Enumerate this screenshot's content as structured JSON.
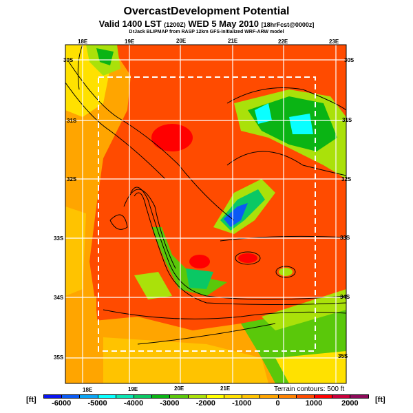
{
  "title": "OvercastDevelopment Potential",
  "subtitle_main": "Valid 1400 LST ",
  "subtitle_small1": "(1200Z)",
  "subtitle_mid": " WED 5 May 2010 ",
  "subtitle_small2": "[18hrFcst@0000z]",
  "credit": "DrJack BLIPMAP from RASP 12km GFS-initialized WRF-ARW model",
  "top_lon_labels": [
    "18E",
    "19E",
    "20E",
    "21E",
    "22E",
    "23E"
  ],
  "bottom_lon_labels": [
    "18E",
    "19E",
    "20E",
    "21E"
  ],
  "left_lat_labels": [
    "30S",
    "31S",
    "32S",
    "33S",
    "34S",
    "35S"
  ],
  "right_lat_labels": [
    "30S",
    "31S",
    "32S",
    "33S",
    "34S",
    "35S"
  ],
  "terrain_note": "Terrain contours: 500 ft",
  "colorbar": {
    "unit_left": "[ft]",
    "unit_right": "[ft]",
    "labels": [
      "-6000",
      "-5000",
      "-4000",
      "-3000",
      "-2000",
      "-1000",
      "0",
      "1000",
      "2000"
    ],
    "colors": [
      "#0a14f0",
      "#0a5af5",
      "#0aa5f5",
      "#0affff",
      "#0ae6b4",
      "#0ac864",
      "#0ab414",
      "#5ac80a",
      "#aae10a",
      "#ffff00",
      "#ffe100",
      "#ffc300",
      "#ffa500",
      "#ff8200",
      "#ff4b00",
      "#ff0000",
      "#c8003c",
      "#8c0a5a"
    ]
  }
}
